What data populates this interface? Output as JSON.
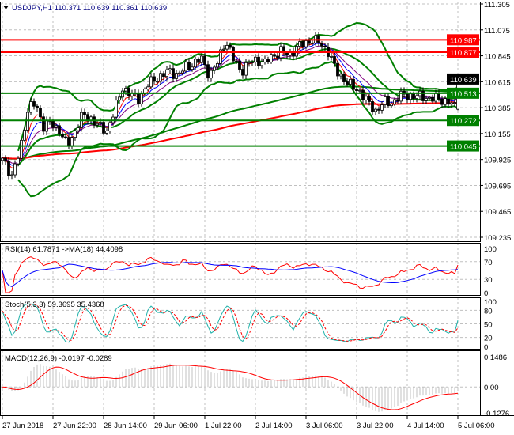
{
  "chart_data": {
    "type": "candlestick",
    "symbol_header": "USDJPY,H1  110.371 110.639 110.361 110.639",
    "timeframe": "H1",
    "ohlc_last": {
      "open": 110.371,
      "high": 110.639,
      "low": 110.361,
      "close": 110.639
    },
    "close_path": [
      109.937,
      109.761,
      110.007,
      110.358,
      110.428,
      110.217,
      110.252,
      110.182,
      110.042,
      110.182,
      110.323,
      110.288,
      110.217,
      110.182,
      110.358,
      110.568,
      110.498,
      110.463,
      110.568,
      110.638,
      110.673,
      110.709,
      110.673,
      110.744,
      110.779,
      110.814,
      110.673,
      110.779,
      110.989,
      110.814,
      110.709,
      110.779,
      110.814,
      110.779,
      110.849,
      110.884,
      110.849,
      110.919,
      110.954,
      110.989,
      110.954,
      110.884,
      110.709,
      110.638,
      110.568,
      110.533,
      110.428,
      110.358,
      110.428,
      110.428,
      110.484,
      110.498,
      110.484,
      110.484,
      110.463,
      110.463,
      110.442,
      110.393,
      110.639
    ],
    "price_axis": {
      "min": 109.235,
      "max": 111.305,
      "ticks": [
        "111.305",
        "111.075",
        "110.845",
        "110.615",
        "110.385",
        "110.155",
        "109.925",
        "109.695",
        "109.465",
        "109.235"
      ]
    },
    "horizontal_levels": [
      {
        "label": "110.987",
        "value": 110.987,
        "color": "#ff0000"
      },
      {
        "label": "110.877",
        "value": 110.877,
        "color": "#ff0000"
      },
      {
        "label": "110.513",
        "value": 110.513,
        "color": "#008000"
      },
      {
        "label": "110.272",
        "value": 110.272,
        "color": "#008000"
      },
      {
        "label": "110.045",
        "value": 110.045,
        "color": "#008000"
      }
    ],
    "current_price_label": "110.639",
    "x_labels": [
      "27 Jun 2018",
      "27 Jun 22:00",
      "28 Jun 14:00",
      "29 Jun 06:00",
      "1 Jul 22:00",
      "2 Jul 14:00",
      "3 Jul 06:00",
      "3 Jul 22:00",
      "4 Jul 14:00",
      "5 Jul 06:00"
    ],
    "overlays": {
      "bollinger_color": "#008000",
      "long_ma_colors": [
        "#ff0000",
        "#008000"
      ],
      "short_ma_colors": [
        "#ff0000",
        "#0000ff",
        "#800080"
      ]
    },
    "rsi": {
      "label": "RSI(14) 61.7871  ->MA(18) 44.4098",
      "ticks": [
        "100",
        "70",
        "30",
        "0"
      ],
      "range": [
        0,
        100
      ],
      "colors": [
        "#ff0000",
        "#0000ff"
      ]
    },
    "stoch": {
      "label": "Stoch(5,3,3) 59.3695 35.4368",
      "ticks": [
        "100",
        "80",
        "50",
        "20",
        "0"
      ],
      "range": [
        0,
        100
      ],
      "colors": [
        "#20b2aa",
        "#ff0000"
      ]
    },
    "macd": {
      "label": "MACD(12,26,9) -0.0197 -0.0289",
      "ticks": [
        "0.1486",
        "0.00",
        "-0.1276"
      ],
      "range": [
        -0.1276,
        0.1486
      ],
      "colors": [
        "#c0c0c0",
        "#ff0000"
      ]
    }
  }
}
